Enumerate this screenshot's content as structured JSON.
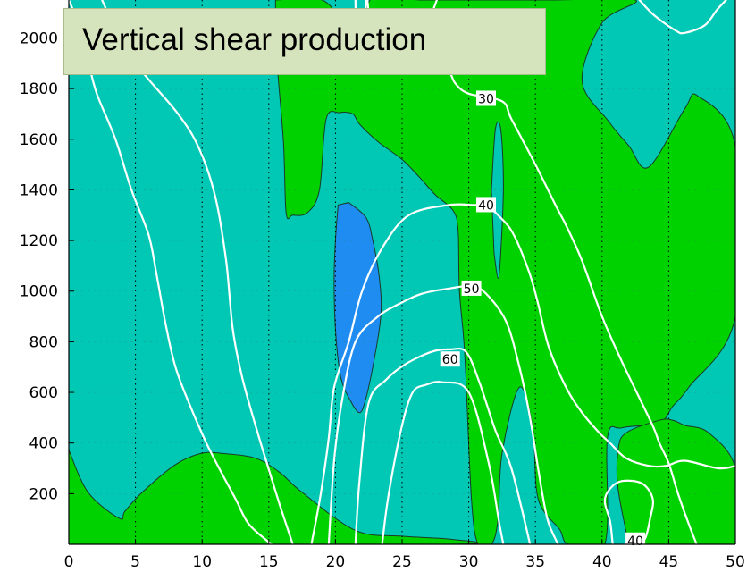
{
  "title": "Vertical shear production",
  "colors": {
    "band_low": "#00c8b4",
    "band_mid": "#00d200",
    "band_negative": "#1e8cf0",
    "contour_line": "#ffffff",
    "grid": "#000000",
    "title_box_fill": "#d6e4bd"
  },
  "chart_data": {
    "type": "heatmap",
    "subtype": "filled contour with overlaid line contours",
    "title": "Vertical shear production",
    "xlim": [
      0,
      50
    ],
    "ylim": [
      0,
      2150
    ],
    "x_ticks": [
      0,
      5,
      10,
      15,
      20,
      25,
      30,
      35,
      40,
      45,
      50
    ],
    "y_ticks": [
      200,
      400,
      600,
      800,
      1000,
      1200,
      1400,
      1600,
      1800,
      2000
    ],
    "grid": "dotted vertical lines at x ticks",
    "line_contour_labels": [
      {
        "label": "30",
        "x": 31.3,
        "y": 1760
      },
      {
        "label": "40",
        "x": 31.3,
        "y": 1340
      },
      {
        "label": "50",
        "x": 30.2,
        "y": 1010
      },
      {
        "label": "60",
        "x": 28.6,
        "y": 730
      },
      {
        "label": "40",
        "x": 42.5,
        "y": 15
      }
    ],
    "filled_regions": [
      {
        "band": "band_low",
        "polygon": [
          [
            0,
            2150
          ],
          [
            50,
            2150
          ],
          [
            50,
            0
          ],
          [
            0,
            0
          ]
        ]
      },
      {
        "band": "band_mid",
        "polygon": [
          [
            0,
            372
          ],
          [
            1.45,
            205
          ],
          [
            3.8,
            102
          ],
          [
            4.2,
            130
          ],
          [
            5.5,
            205
          ],
          [
            8,
            315
          ],
          [
            10,
            360
          ],
          [
            11.7,
            358
          ],
          [
            14,
            340
          ],
          [
            15.8,
            285
          ],
          [
            17.5,
            205
          ],
          [
            21.5,
            55
          ],
          [
            25,
            32
          ],
          [
            28.6,
            20
          ],
          [
            28.6,
            0
          ],
          [
            0,
            0
          ]
        ]
      },
      {
        "band": "band_mid",
        "polygon": [
          [
            15.5,
            2150
          ],
          [
            19,
            2150
          ],
          [
            20.5,
            2050
          ],
          [
            21.4,
            1970
          ],
          [
            22.6,
            1940
          ],
          [
            22.6,
            2150
          ],
          [
            26.5,
            2150
          ],
          [
            31.5,
            2150
          ],
          [
            33,
            2150
          ],
          [
            36.5,
            2150
          ],
          [
            42.5,
            2150
          ],
          [
            40,
            2060
          ],
          [
            38.5,
            1830
          ],
          [
            40.5,
            1670
          ],
          [
            42,
            1575
          ],
          [
            43.5,
            1490
          ],
          [
            46.2,
            1720
          ],
          [
            47.2,
            1770
          ],
          [
            50,
            1570
          ],
          [
            50,
            900
          ],
          [
            46.5,
            620
          ],
          [
            45.3,
            545
          ],
          [
            44.3,
            480
          ],
          [
            41.5,
            460
          ],
          [
            40.4,
            420
          ],
          [
            40.2,
            0
          ],
          [
            37.5,
            0
          ],
          [
            36.8,
            60
          ],
          [
            35.2,
            180
          ],
          [
            34.8,
            460
          ],
          [
            33.8,
            620
          ],
          [
            32.5,
            360
          ],
          [
            32.2,
            100
          ],
          [
            31.7,
            0
          ],
          [
            30.7,
            0
          ],
          [
            30.2,
            180
          ],
          [
            29.7,
            750
          ],
          [
            29.3,
            1000
          ],
          [
            29.2,
            1240
          ],
          [
            28.8,
            1320
          ],
          [
            27.5,
            1380
          ],
          [
            26.3,
            1450
          ],
          [
            25,
            1520
          ],
          [
            23.2,
            1590
          ],
          [
            21.8,
            1660
          ],
          [
            21.3,
            1700
          ],
          [
            20.3,
            1705
          ],
          [
            19.3,
            1680
          ],
          [
            18.8,
            1400
          ],
          [
            17.9,
            1310
          ],
          [
            16.8,
            1300
          ],
          [
            16.3,
            1310
          ],
          [
            16.1,
            1590
          ],
          [
            15.6,
            1920
          ],
          [
            15.5,
            2150
          ]
        ]
      },
      {
        "band": "band_low",
        "polygon": [
          [
            31.7,
            1400
          ],
          [
            32,
            1640
          ],
          [
            32.4,
            1640
          ],
          [
            32.6,
            1420
          ],
          [
            32.4,
            1150
          ],
          [
            32.2,
            1050
          ],
          [
            31.9,
            1150
          ]
        ]
      },
      {
        "band": "band_mid",
        "polygon": [
          [
            42,
            0
          ],
          [
            41.2,
            220
          ],
          [
            41.2,
            370
          ],
          [
            41.8,
            440
          ],
          [
            44.3,
            490
          ],
          [
            45.3,
            490
          ],
          [
            46.2,
            470
          ],
          [
            48,
            440
          ],
          [
            50,
            300
          ],
          [
            50,
            0
          ]
        ]
      },
      {
        "band": "band_negative",
        "polygon": [
          [
            20.2,
            1340
          ],
          [
            20,
            1200
          ],
          [
            19.9,
            1050
          ],
          [
            20,
            850
          ],
          [
            20.4,
            660
          ],
          [
            21.2,
            560
          ],
          [
            21.8,
            520
          ],
          [
            22.2,
            560
          ],
          [
            22.8,
            700
          ],
          [
            23.4,
            900
          ],
          [
            23.3,
            1050
          ],
          [
            22.8,
            1200
          ],
          [
            22.3,
            1290
          ],
          [
            21,
            1350
          ]
        ]
      }
    ],
    "line_contours": [
      {
        "label": "30",
        "points": [
          [
            0,
            2150
          ],
          [
            1,
            2020
          ],
          [
            1.5,
            1900
          ],
          [
            2.1,
            1780
          ],
          [
            3.5,
            1600
          ],
          [
            4.7,
            1400
          ],
          [
            6,
            1220
          ],
          [
            6.6,
            1060
          ],
          [
            7.3,
            860
          ],
          [
            8,
            700
          ],
          [
            9,
            560
          ],
          [
            10.5,
            380
          ],
          [
            12.5,
            180
          ],
          [
            13.5,
            80
          ],
          [
            15.2,
            0
          ]
        ]
      },
      {
        "label": "30",
        "points": [
          [
            27.6,
            2150
          ],
          [
            26.7,
            2000
          ],
          [
            27.3,
            1930
          ],
          [
            28.5,
            1870
          ],
          [
            29,
            1820
          ],
          [
            30,
            1780
          ],
          [
            32.5,
            1750
          ],
          [
            33.2,
            1680
          ],
          [
            35,
            1500
          ],
          [
            36.6,
            1330
          ],
          [
            37.3,
            1260
          ],
          [
            38.5,
            1120
          ],
          [
            40,
            900
          ],
          [
            41.5,
            720
          ],
          [
            43.7,
            480
          ],
          [
            44.3,
            400
          ],
          [
            45,
            320
          ],
          [
            45.7,
            200
          ],
          [
            46.5,
            80
          ],
          [
            47.1,
            0
          ]
        ]
      },
      {
        "label": "40",
        "points": [
          [
            2.5,
            2150
          ],
          [
            3.2,
            2070
          ],
          [
            5,
            1900
          ],
          [
            8.2,
            1700
          ],
          [
            9.8,
            1560
          ],
          [
            11,
            1370
          ],
          [
            11.8,
            1120
          ],
          [
            12.3,
            850
          ],
          [
            13,
            660
          ],
          [
            14,
            470
          ],
          [
            14.8,
            330
          ],
          [
            15.8,
            160
          ],
          [
            16.8,
            0
          ]
        ]
      },
      {
        "label": "40",
        "points": [
          [
            22.4,
            2150
          ],
          [
            22.6,
            2040
          ],
          [
            22.8,
            2030
          ],
          [
            23.3,
            2000
          ],
          [
            23.8,
            1950
          ]
        ]
      },
      {
        "label": "40",
        "points": [
          [
            18.2,
            0
          ],
          [
            18.9,
            200
          ],
          [
            19.5,
            420
          ],
          [
            19.9,
            620
          ],
          [
            21,
            800
          ],
          [
            22,
            1000
          ],
          [
            23.5,
            1170
          ],
          [
            25.5,
            1300
          ],
          [
            28.5,
            1340
          ],
          [
            30.4,
            1340
          ],
          [
            31.3,
            1340
          ],
          [
            32.2,
            1300
          ],
          [
            33.3,
            1230
          ],
          [
            34.5,
            1080
          ],
          [
            35.2,
            950
          ],
          [
            36,
            780
          ],
          [
            37.3,
            620
          ],
          [
            38.5,
            520
          ],
          [
            39.8,
            440
          ],
          [
            40.6,
            400
          ],
          [
            41.8,
            340
          ],
          [
            43.5,
            310
          ],
          [
            44.8,
            310
          ],
          [
            46.2,
            330
          ],
          [
            48.7,
            300
          ],
          [
            50,
            310
          ]
        ]
      },
      {
        "label": "40",
        "points": [
          [
            40.8,
            0
          ],
          [
            40.6,
            90
          ],
          [
            40.2,
            170
          ],
          [
            40.6,
            220
          ],
          [
            41.5,
            250
          ],
          [
            43,
            240
          ],
          [
            43.8,
            180
          ],
          [
            43.6,
            100
          ],
          [
            43.2,
            20
          ],
          [
            42.5,
            10
          ]
        ]
      },
      {
        "label": "50",
        "points": [
          [
            19.5,
            0
          ],
          [
            19.9,
            330
          ],
          [
            20.5,
            570
          ],
          [
            21.5,
            800
          ],
          [
            23.2,
            900
          ],
          [
            24.8,
            950
          ],
          [
            26.5,
            990
          ],
          [
            28.5,
            1010
          ],
          [
            30.2,
            1020
          ],
          [
            31.3,
            990
          ],
          [
            32.8,
            880
          ],
          [
            33.8,
            700
          ],
          [
            34.6,
            500
          ],
          [
            35.2,
            300
          ],
          [
            35.9,
            100
          ],
          [
            36.7,
            0
          ]
        ]
      },
      {
        "label": "60",
        "points": [
          [
            21.5,
            0
          ],
          [
            21.8,
            250
          ],
          [
            22.5,
            560
          ],
          [
            23.8,
            650
          ],
          [
            25.2,
            710
          ],
          [
            27.2,
            760
          ],
          [
            28.6,
            770
          ],
          [
            29.8,
            760
          ],
          [
            30.8,
            640
          ],
          [
            32,
            450
          ],
          [
            33.2,
            300
          ],
          [
            34.6,
            0
          ]
        ]
      },
      {
        "label": "",
        "points": [
          [
            23.5,
            0
          ],
          [
            24,
            200
          ],
          [
            25,
            470
          ],
          [
            25.8,
            600
          ],
          [
            26.8,
            630
          ],
          [
            28,
            640
          ],
          [
            30,
            600
          ],
          [
            31.5,
            320
          ],
          [
            32.3,
            80
          ],
          [
            32.6,
            0
          ]
        ]
      },
      {
        "label": "",
        "points": [
          [
            42.8,
            2150
          ],
          [
            43.9,
            2090
          ],
          [
            45.5,
            2030
          ],
          [
            46.2,
            2020
          ],
          [
            47.7,
            2050
          ],
          [
            48.6,
            2110
          ],
          [
            49.3,
            2150
          ]
        ]
      },
      {
        "label": "",
        "points": [
          [
            22.3,
            2150
          ],
          [
            22.1,
            1960
          ],
          [
            21.6,
            1920
          ],
          [
            21.5,
            2150
          ]
        ]
      }
    ]
  }
}
